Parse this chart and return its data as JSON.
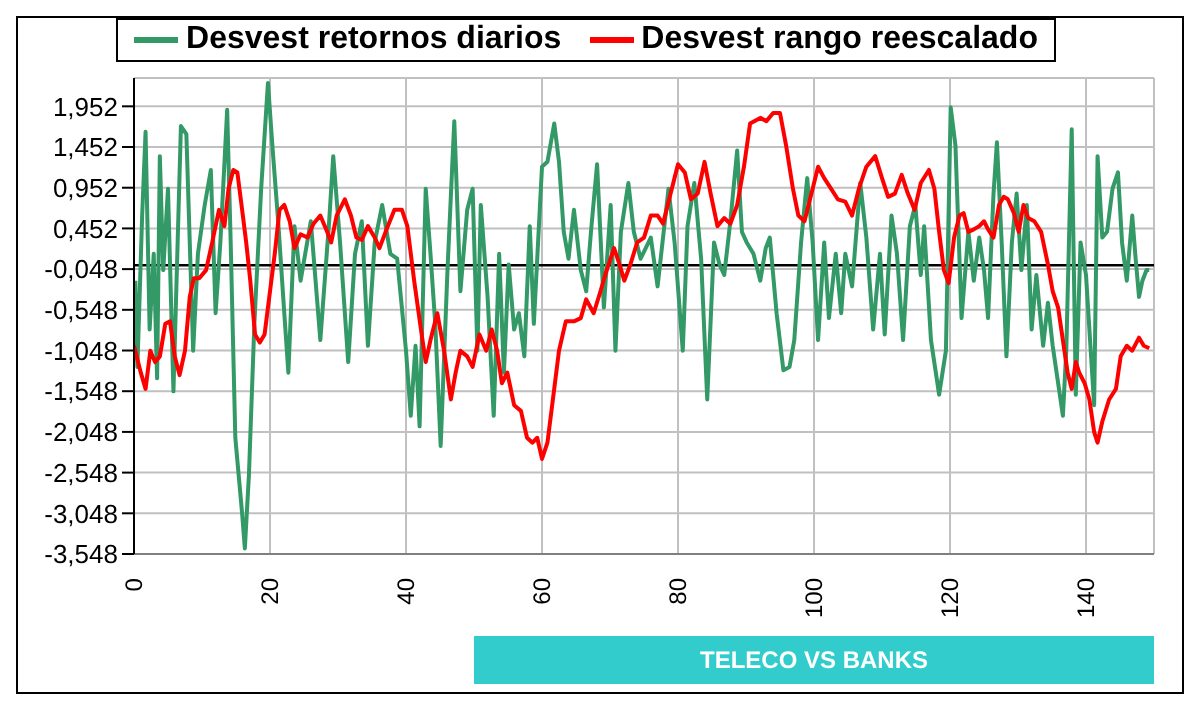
{
  "chart_data": {
    "type": "line",
    "annotations": [
      "TELECO VS BANKS"
    ],
    "xlim": [
      0,
      150
    ],
    "xticks": [
      0,
      20,
      40,
      60,
      80,
      100,
      120,
      140
    ],
    "ylim": [
      -3.548,
      2.3
    ],
    "yticks": [
      {
        "value": -3.548,
        "label": "-3,548"
      },
      {
        "value": -3.048,
        "label": "-3,048"
      },
      {
        "value": -2.548,
        "label": "-2,548"
      },
      {
        "value": -2.048,
        "label": "-2,048"
      },
      {
        "value": -1.548,
        "label": "-1,548"
      },
      {
        "value": -1.048,
        "label": "-1,048"
      },
      {
        "value": -0.548,
        "label": "-0,548"
      },
      {
        "value": -0.048,
        "label": "-0,048"
      },
      {
        "value": 0.452,
        "label": "0,452"
      },
      {
        "value": 0.952,
        "label": "0,952"
      },
      {
        "value": 1.452,
        "label": "1,452"
      },
      {
        "value": 1.952,
        "label": "1,952"
      }
    ],
    "grid": true,
    "legend": "top",
    "marker": "none",
    "line_style": "solid",
    "ref_lines": [
      {
        "axis": "y",
        "value": 0,
        "color": "#000000"
      }
    ],
    "series": [
      {
        "name": "Desvest retornos diarios",
        "color": "#339966",
        "x": [
          0.2,
          0.5,
          1.2,
          1.7,
          2.3,
          2.9,
          3.4,
          3.8,
          4.3,
          5.0,
          5.8,
          6.9,
          7.7,
          8.7,
          9.4,
          10.4,
          11.3,
          12.0,
          12.7,
          13.7,
          14.2,
          14.9,
          15.9,
          16.3,
          16.9,
          17.7,
          18.7,
          19.7,
          20.4,
          21.2,
          22.1,
          22.7,
          23.6,
          24.5,
          26.0,
          27.4,
          28.7,
          29.3,
          30.3,
          31.5,
          32.5,
          33.5,
          34.4,
          35.4,
          36.5,
          37.7,
          38.7,
          40.0,
          40.7,
          41.4,
          42.0,
          42.9,
          43.6,
          44.3,
          45.1,
          46.1,
          47.1,
          48.0,
          49.0,
          49.8,
          50.5,
          51.0,
          52.0,
          52.9,
          53.7,
          54.4,
          55.1,
          55.9,
          56.6,
          57.4,
          58.2,
          58.8,
          60.0,
          60.8,
          61.8,
          62.5,
          63.2,
          63.9,
          64.7,
          65.7,
          66.5,
          67.2,
          68.1,
          69.1,
          70.1,
          70.8,
          71.6,
          72.7,
          73.5,
          74.5,
          76.0,
          77.0,
          78.6,
          79.5,
          80.7,
          81.4,
          82.4,
          83.4,
          84.3,
          85.3,
          86.1,
          86.8,
          87.7,
          88.7,
          89.4,
          90.1,
          91.1,
          92.1,
          92.9,
          93.5,
          94.5,
          95.5,
          96.4,
          97.1,
          98.1,
          99.0,
          99.8,
          100.6,
          101.5,
          102.2,
          103.2,
          104.0,
          104.6,
          105.6,
          106.8,
          107.7,
          108.7,
          109.7,
          110.4,
          111.4,
          112.2,
          113.1,
          114.1,
          114.9,
          115.7,
          116.2,
          117.2,
          118.4,
          119.4,
          120.1,
          120.8,
          121.7,
          122.7,
          123.5,
          124.3,
          125.0,
          125.6,
          126.4,
          126.9,
          127.6,
          128.3,
          129.1,
          129.8,
          130.5,
          131.3,
          132.0,
          132.7,
          133.7,
          134.4,
          135.1,
          135.8,
          136.6,
          137.1,
          137.9,
          138.5,
          139.2,
          140.0,
          140.5,
          141.2,
          141.7,
          142.4,
          143.1,
          143.9,
          144.7,
          145.3,
          146.0,
          146.8,
          147.3,
          147.8,
          148.3,
          148.9,
          149.3
        ],
        "values": [
          -0.19,
          -1.25,
          0.61,
          1.64,
          -0.79,
          0.14,
          -1.39,
          1.34,
          -0.06,
          0.94,
          -1.55,
          1.71,
          1.61,
          -1.05,
          0.14,
          0.74,
          1.17,
          -0.59,
          0.28,
          1.91,
          0.34,
          -2.12,
          -3.05,
          -3.48,
          -2.58,
          -0.72,
          0.94,
          2.24,
          1.41,
          0.54,
          -0.59,
          -1.32,
          0.48,
          -0.19,
          0.54,
          -0.92,
          0.54,
          1.34,
          0.28,
          -1.19,
          0.14,
          0.54,
          -0.99,
          0.28,
          0.74,
          0.14,
          0.08,
          -1.05,
          -1.85,
          -0.99,
          -1.98,
          0.94,
          0.14,
          -0.72,
          -2.22,
          -0.06,
          1.77,
          -0.32,
          0.68,
          0.94,
          -1.05,
          0.74,
          -0.39,
          -1.85,
          0.14,
          -1.32,
          0.01,
          -0.79,
          -0.59,
          -1.12,
          0.48,
          -0.72,
          1.21,
          1.27,
          1.74,
          1.27,
          0.41,
          0.08,
          0.68,
          -0.06,
          -0.32,
          0.41,
          1.24,
          -0.52,
          0.74,
          -1.05,
          0.41,
          1.01,
          0.41,
          0.08,
          0.34,
          -0.26,
          0.94,
          0.28,
          -1.05,
          0.48,
          1.01,
          0.08,
          -1.65,
          0.28,
          0.01,
          -0.12,
          0.54,
          1.41,
          0.41,
          0.28,
          0.14,
          -0.19,
          0.21,
          0.34,
          -0.59,
          -1.29,
          -1.25,
          -0.92,
          0.28,
          1.07,
          0.28,
          -0.92,
          0.28,
          -0.65,
          0.14,
          -0.59,
          0.14,
          -0.26,
          1.01,
          0.34,
          -0.79,
          0.14,
          -0.85,
          0.61,
          0.14,
          -0.92,
          0.48,
          0.74,
          -0.12,
          0.48,
          -0.92,
          -1.59,
          -1.05,
          1.94,
          1.47,
          -0.65,
          0.41,
          -0.19,
          0.34,
          -0.06,
          -0.65,
          0.88,
          1.51,
          0.28,
          -1.12,
          0.28,
          0.88,
          -0.06,
          0.74,
          -0.79,
          -0.12,
          -0.99,
          -0.46,
          -0.99,
          -1.39,
          -1.85,
          -1.05,
          1.67,
          -1.59,
          0.28,
          -0.12,
          -0.79,
          -1.72,
          1.34,
          0.34,
          0.41,
          0.94,
          1.14,
          0.28,
          -0.19,
          0.61,
          0.08,
          -0.39,
          -0.19,
          -0.06,
          -0.06
        ]
      },
      {
        "name": "Desvest rango reescalado",
        "color": "#ff0000",
        "x": [
          0,
          1.0,
          1.7,
          2.4,
          3.1,
          3.8,
          4.6,
          5.3,
          6.0,
          6.7,
          7.5,
          8.2,
          8.8,
          9.6,
          10.6,
          11.5,
          12.5,
          13.3,
          13.9,
          14.6,
          15.2,
          15.9,
          16.5,
          17.1,
          17.8,
          18.5,
          19.2,
          20.0,
          20.7,
          21.4,
          22.1,
          22.9,
          23.6,
          24.5,
          25.5,
          26.4,
          27.4,
          28.4,
          29.0,
          29.8,
          31.0,
          31.9,
          32.7,
          33.5,
          34.4,
          35.4,
          36.1,
          37.0,
          38.3,
          39.4,
          40.2,
          41.2,
          42.2,
          42.9,
          43.6,
          44.6,
          45.6,
          46.6,
          47.3,
          48.0,
          49.0,
          49.8,
          50.8,
          51.8,
          52.6,
          53.4,
          54.1,
          54.9,
          55.9,
          56.9,
          57.8,
          58.6,
          59.3,
          60.0,
          60.8,
          61.6,
          62.5,
          63.5,
          64.7,
          65.7,
          66.5,
          67.6,
          68.6,
          69.4,
          70.6,
          71.4,
          72.1,
          73.0,
          74.0,
          75.0,
          76.0,
          77.0,
          77.8,
          78.7,
          80.0,
          81.0,
          81.9,
          82.9,
          83.9,
          84.8,
          85.8,
          86.8,
          87.7,
          88.7,
          89.7,
          90.6,
          92.1,
          93.0,
          94.0,
          95.0,
          95.9,
          96.9,
          97.7,
          98.6,
          99.8,
          100.6,
          101.5,
          102.5,
          103.5,
          104.6,
          105.6,
          106.6,
          107.7,
          109.0,
          110.0,
          110.9,
          111.9,
          112.9,
          113.8,
          114.8,
          115.7,
          116.9,
          117.7,
          118.4,
          119.1,
          119.8,
          120.6,
          121.4,
          122.0,
          122.7,
          123.5,
          124.3,
          125.0,
          125.6,
          126.4,
          127.2,
          127.9,
          128.5,
          129.4,
          130.1,
          130.8,
          131.5,
          132.4,
          133.4,
          134.4,
          135.1,
          135.9,
          136.6,
          137.3,
          137.9,
          138.5,
          139.0,
          139.8,
          140.5,
          141.2,
          141.7,
          142.4,
          143.4,
          144.4,
          145.1,
          146.0,
          146.8,
          147.8,
          148.5,
          149.3
        ],
        "values": [
          -0.99,
          -1.32,
          -1.52,
          -1.05,
          -1.19,
          -1.12,
          -0.72,
          -0.69,
          -1.12,
          -1.35,
          -1.05,
          -0.39,
          -0.16,
          -0.16,
          -0.06,
          0.28,
          0.68,
          0.48,
          0.94,
          1.17,
          1.14,
          0.68,
          0.28,
          -0.19,
          -0.85,
          -0.95,
          -0.85,
          -0.32,
          0.14,
          0.68,
          0.74,
          0.54,
          0.21,
          0.38,
          0.34,
          0.51,
          0.61,
          0.41,
          0.28,
          0.61,
          0.81,
          0.61,
          0.34,
          0.31,
          0.48,
          0.34,
          0.21,
          0.41,
          0.68,
          0.68,
          0.48,
          -0.19,
          -0.79,
          -1.19,
          -0.92,
          -0.59,
          -1.05,
          -1.65,
          -1.32,
          -1.05,
          -1.12,
          -1.25,
          -0.85,
          -1.05,
          -0.79,
          -1.05,
          -1.45,
          -1.32,
          -1.72,
          -1.79,
          -2.12,
          -2.18,
          -2.12,
          -2.38,
          -2.18,
          -1.65,
          -1.05,
          -0.69,
          -0.69,
          -0.65,
          -0.42,
          -0.59,
          -0.32,
          -0.09,
          0.21,
          0.01,
          -0.19,
          0.01,
          0.28,
          0.34,
          0.61,
          0.61,
          0.51,
          0.81,
          1.24,
          1.14,
          0.81,
          0.88,
          1.27,
          0.88,
          0.48,
          0.58,
          0.51,
          0.74,
          1.21,
          1.74,
          1.81,
          1.77,
          1.87,
          1.87,
          1.47,
          0.94,
          0.61,
          0.54,
          0.94,
          1.21,
          1.07,
          0.94,
          0.81,
          0.78,
          0.61,
          0.94,
          1.21,
          1.34,
          1.07,
          0.84,
          0.88,
          1.11,
          0.88,
          0.68,
          1.01,
          1.17,
          0.94,
          0.41,
          -0.06,
          -0.22,
          0.34,
          0.61,
          0.64,
          0.41,
          0.44,
          0.48,
          0.54,
          0.44,
          0.34,
          0.74,
          0.84,
          0.81,
          0.64,
          0.41,
          0.74,
          0.58,
          0.54,
          0.41,
          0.01,
          -0.32,
          -0.52,
          -0.92,
          -1.32,
          -1.52,
          -1.19,
          -1.32,
          -1.45,
          -1.65,
          -2.05,
          -2.18,
          -1.92,
          -1.65,
          -1.52,
          -1.12,
          -0.99,
          -1.05,
          -0.89,
          -0.99,
          -1.02
        ]
      }
    ]
  }
}
